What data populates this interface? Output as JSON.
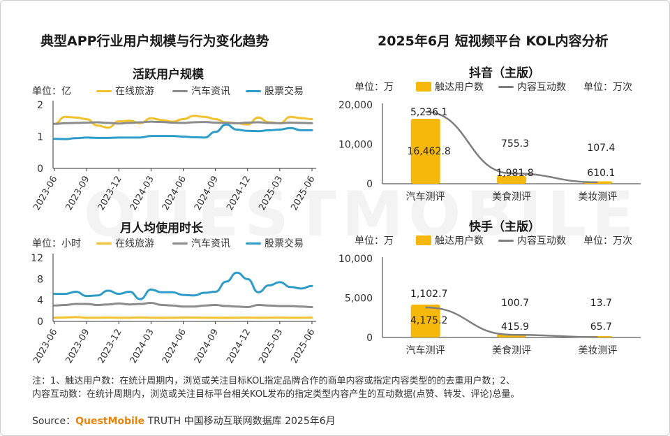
{
  "left_title": "典型APP行业用户规模与行为变化趋势",
  "right_title": "2025年6月 短视频平台 KOL内容分析",
  "colors": {
    "travel": "#F2C12E",
    "auto": "#8C8C8C",
    "stock": "#2E9CC9",
    "bar": "#F6B80B",
    "interact": "#7F7F7F"
  },
  "watermark": "QUESTMOBILE",
  "chart_data": [
    {
      "type": "line",
      "title": "活跃用户规模",
      "unit_label": "单位：亿",
      "x": [
        "2023-06",
        "2023-07",
        "2023-08",
        "2023-09",
        "2023-10",
        "2023-11",
        "2023-12",
        "2024-01",
        "2024-02",
        "2024-03",
        "2024-04",
        "2024-05",
        "2024-06",
        "2024-07",
        "2024-08",
        "2024-09",
        "2024-10",
        "2024-11",
        "2024-12",
        "2025-01",
        "2025-02",
        "2025-03",
        "2025-04",
        "2025-05",
        "2025-06"
      ],
      "xticks": [
        "2023-06",
        "2023-09",
        "2023-12",
        "2024-03",
        "2024-06",
        "2024-09",
        "2024-12",
        "2025-03",
        "2025-06"
      ],
      "yticks": [
        "0",
        "1",
        "2"
      ],
      "ylim": [
        0,
        2
      ],
      "series": [
        {
          "name": "在线旅游",
          "color_key": "travel",
          "values": [
            1.4,
            1.62,
            1.6,
            1.55,
            1.35,
            1.28,
            1.48,
            1.5,
            1.42,
            1.58,
            1.52,
            1.47,
            1.55,
            1.65,
            1.62,
            1.55,
            1.45,
            1.42,
            1.38,
            1.6,
            1.45,
            1.42,
            1.62,
            1.58,
            1.55
          ]
        },
        {
          "name": "汽车资讯",
          "color_key": "auto",
          "values": [
            1.4,
            1.42,
            1.43,
            1.44,
            1.45,
            1.43,
            1.41,
            1.43,
            1.45,
            1.47,
            1.46,
            1.44,
            1.43,
            1.45,
            1.46,
            1.44,
            1.43,
            1.42,
            1.44,
            1.45,
            1.43,
            1.42,
            1.44,
            1.43,
            1.42
          ]
        },
        {
          "name": "股票交易",
          "color_key": "stock",
          "values": [
            0.93,
            0.92,
            0.95,
            0.97,
            0.96,
            0.96,
            0.97,
            0.97,
            0.97,
            1.02,
            1.02,
            1.02,
            1.0,
            0.98,
            0.97,
            1.15,
            1.38,
            1.22,
            1.18,
            1.17,
            1.2,
            1.22,
            1.27,
            1.2,
            1.2
          ]
        }
      ]
    },
    {
      "type": "line",
      "title": "月人均使用时长",
      "unit_label": "单位：小时",
      "x": [
        "2023-06",
        "2023-07",
        "2023-08",
        "2023-09",
        "2023-10",
        "2023-11",
        "2023-12",
        "2024-01",
        "2024-02",
        "2024-03",
        "2024-04",
        "2024-05",
        "2024-06",
        "2024-07",
        "2024-08",
        "2024-09",
        "2024-10",
        "2024-11",
        "2024-12",
        "2025-01",
        "2025-02",
        "2025-03",
        "2025-04",
        "2025-05",
        "2025-06"
      ],
      "xticks": [
        "2023-06",
        "2023-09",
        "2023-12",
        "2024-03",
        "2024-06",
        "2024-09",
        "2024-12",
        "2025-03",
        "2025-06"
      ],
      "yticks": [
        "0",
        "4",
        "8",
        "12"
      ],
      "ylim": [
        0,
        12
      ],
      "series": [
        {
          "name": "在线旅游",
          "color_key": "travel",
          "values": [
            0.7,
            0.75,
            0.8,
            0.7,
            0.7,
            0.72,
            0.7,
            0.7,
            0.75,
            0.7,
            0.68,
            0.7,
            0.72,
            0.72,
            0.7,
            0.7,
            0.68,
            0.7,
            0.72,
            0.7,
            0.7,
            0.72,
            0.7,
            0.7,
            0.72
          ]
        },
        {
          "name": "汽车资讯",
          "color_key": "auto",
          "values": [
            3.0,
            3.1,
            3.3,
            3.3,
            3.1,
            3.2,
            3.4,
            3.2,
            3.3,
            3.5,
            3.1,
            3.0,
            2.8,
            2.8,
            3.0,
            3.1,
            2.9,
            2.8,
            2.7,
            3.1,
            3.0,
            2.9,
            2.9,
            2.8,
            2.7
          ]
        },
        {
          "name": "股票交易",
          "color_key": "stock",
          "values": [
            5.2,
            5.2,
            5.6,
            4.8,
            4.9,
            5.8,
            5.2,
            5.6,
            4.2,
            6.0,
            5.5,
            5.5,
            5.0,
            4.9,
            5.4,
            5.6,
            7.5,
            9.2,
            8.0,
            5.5,
            6.8,
            7.4,
            6.5,
            6.2,
            6.7
          ]
        }
      ]
    },
    {
      "type": "bar",
      "title": "抖音（主版）",
      "left_unit": "单位：万",
      "right_unit": "单位：万次",
      "categories": [
        "汽车测评",
        "美食测评",
        "美妆测评"
      ],
      "yticks": [
        "0",
        "10,000",
        "20,000"
      ],
      "ylim": [
        0,
        20000
      ],
      "series": [
        {
          "name": "触达用户数",
          "kind": "bar",
          "color_key": "bar",
          "values": [
            16462.8,
            1981.8,
            610.1
          ],
          "labels": [
            "16,462.8",
            "1,981.8",
            "610.1"
          ]
        },
        {
          "name": "内容互动数",
          "kind": "line",
          "color_key": "interact",
          "values": [
            5236.1,
            755.3,
            107.4
          ],
          "labels": [
            "5,236.1",
            "755.3",
            "107.4"
          ],
          "secondary_ylim": [
            0,
            5750
          ]
        }
      ]
    },
    {
      "type": "bar",
      "title": "快手（主版）",
      "left_unit": "单位：万",
      "right_unit": "单位：万次",
      "categories": [
        "汽车测评",
        "美食测评",
        "美妆测评"
      ],
      "yticks": [
        "0",
        "5,000",
        "10,000"
      ],
      "ylim": [
        0,
        10000
      ],
      "series": [
        {
          "name": "触达用户数",
          "kind": "bar",
          "color_key": "bar",
          "values": [
            4175.2,
            415.9,
            65.7
          ],
          "labels": [
            "4,175.2",
            "415.9",
            "65.7"
          ]
        },
        {
          "name": "内容互动数",
          "kind": "line",
          "color_key": "interact",
          "values": [
            1102.7,
            100.7,
            13.7
          ],
          "labels": [
            "1,102.7",
            "100.7",
            "13.7"
          ],
          "secondary_ylim": [
            0,
            2900
          ]
        }
      ]
    }
  ],
  "notes": {
    "line1": "注：1、触达用户数：在统计周期内，浏览或关注目标KOL指定品牌合作的商单内容或指定内容类型的的去重用户数；2、",
    "line2": "内容互动数：在统计周期内，浏览或关注目标平台相关KOL发布的指定类型内容产生的互动数据(点赞、转发、评论)总量。"
  },
  "source": {
    "prefix": "Source：",
    "brand": "QuestMobile",
    "rest": " TRUTH 中国移动互联网数据库 2025年6月"
  }
}
